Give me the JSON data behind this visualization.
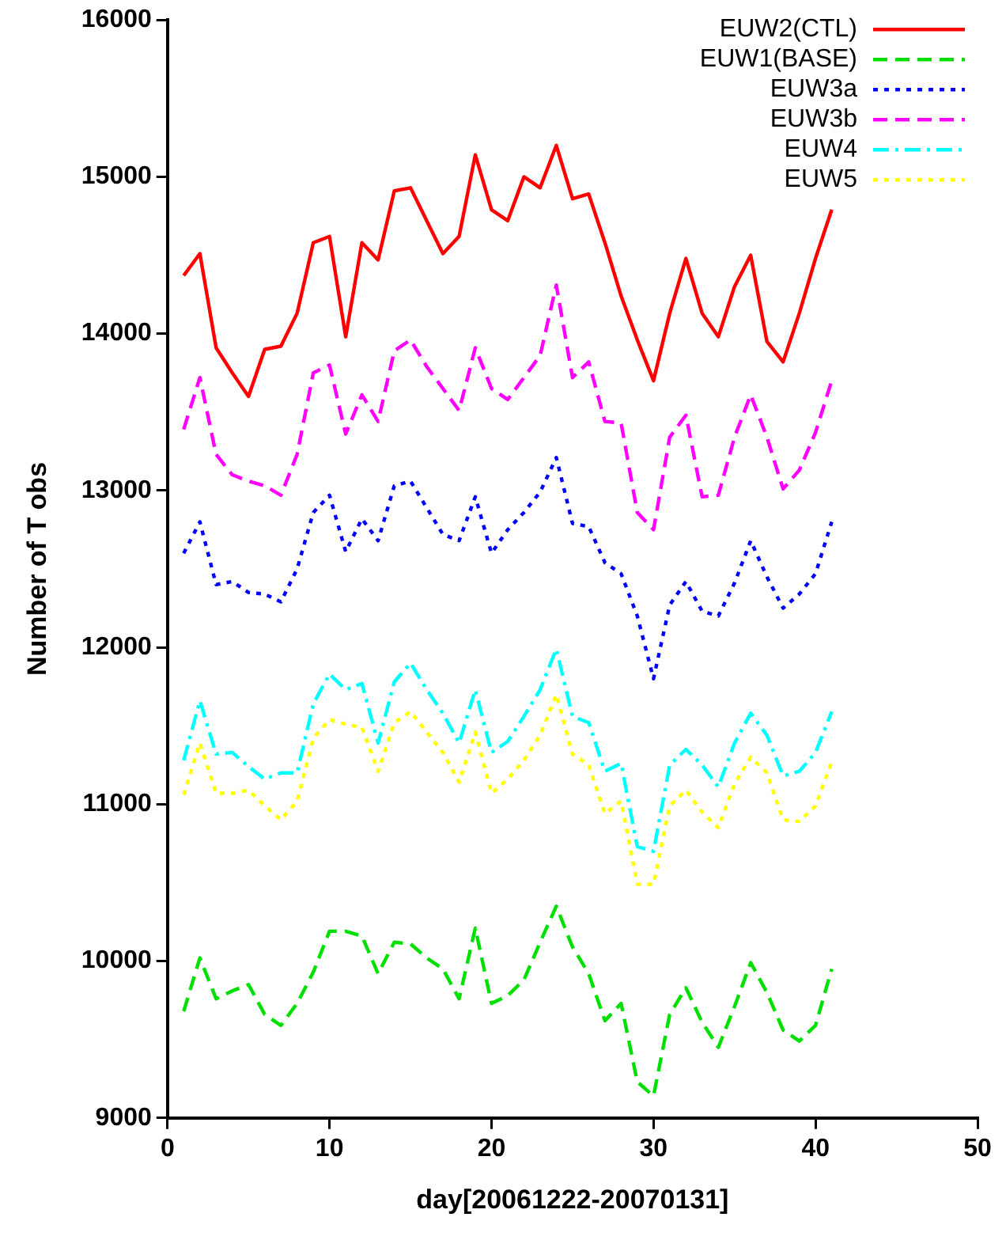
{
  "chart_data": {
    "type": "line",
    "xlabel": "day[20061222-20070131]",
    "ylabel": "Number of T obs",
    "x": [
      1,
      2,
      3,
      4,
      5,
      6,
      7,
      8,
      9,
      10,
      11,
      12,
      13,
      14,
      15,
      16,
      17,
      18,
      19,
      20,
      21,
      22,
      23,
      24,
      25,
      26,
      27,
      28,
      29,
      30,
      31,
      32,
      33,
      34,
      35,
      36,
      37,
      38,
      39,
      40,
      41
    ],
    "xlim": [
      0,
      50
    ],
    "xticks": [
      0,
      10,
      20,
      30,
      40,
      50
    ],
    "ylim": [
      9000,
      16000
    ],
    "yticks": [
      9000,
      10000,
      11000,
      12000,
      13000,
      14000,
      15000,
      16000
    ],
    "grid": false,
    "legend": "top right",
    "marker": "none",
    "series": [
      {
        "name": "EUW2(CTL)",
        "color": "#ff0000",
        "line_style": "solid",
        "values": [
          14370,
          14510,
          13910,
          13750,
          13600,
          13900,
          13920,
          14130,
          14580,
          14620,
          13980,
          14580,
          14470,
          14910,
          14930,
          14720,
          14510,
          14620,
          15140,
          14790,
          14720,
          15000,
          14930,
          15200,
          14860,
          14890,
          14580,
          14240,
          13960,
          13700,
          14130,
          14480,
          14130,
          13980,
          14300,
          14500,
          13950,
          13820,
          14130,
          14480,
          14790
        ]
      },
      {
        "name": "EUW1(BASE)",
        "color": "#00e000",
        "line_style": "dashed",
        "values": [
          9680,
          10020,
          9760,
          9810,
          9850,
          9660,
          9590,
          9730,
          9930,
          10190,
          10190,
          10160,
          9920,
          10120,
          10110,
          10020,
          9950,
          9760,
          10210,
          9730,
          9780,
          9880,
          10120,
          10350,
          10090,
          9920,
          9620,
          9730,
          9230,
          9140,
          9660,
          9830,
          9610,
          9450,
          9710,
          9990,
          9800,
          9560,
          9490,
          9590,
          9950
        ]
      },
      {
        "name": "EUW3a",
        "color": "#0000ff",
        "line_style": "dotted",
        "values": [
          12600,
          12800,
          12400,
          12420,
          12350,
          12340,
          12290,
          12500,
          12860,
          12970,
          12610,
          12820,
          12680,
          13030,
          13060,
          12890,
          12720,
          12680,
          12960,
          12600,
          12750,
          12860,
          12990,
          13210,
          12790,
          12770,
          12540,
          12470,
          12200,
          11800,
          12270,
          12420,
          12230,
          12200,
          12410,
          12680,
          12450,
          12250,
          12340,
          12470,
          12800
        ]
      },
      {
        "name": "EUW3b",
        "color": "#ff00ff",
        "line_style": "dashed",
        "values": [
          13390,
          13720,
          13230,
          13100,
          13060,
          13030,
          12970,
          13230,
          13750,
          13800,
          13360,
          13610,
          13440,
          13890,
          13960,
          13790,
          13650,
          13510,
          13910,
          13650,
          13580,
          13720,
          13860,
          14310,
          13720,
          13820,
          13440,
          13430,
          12860,
          12750,
          13340,
          13480,
          12960,
          12970,
          13340,
          13610,
          13340,
          13010,
          13130,
          13370,
          13700
        ]
      },
      {
        "name": "EUW4",
        "color": "#00ffff",
        "line_style": "dashdot",
        "values": [
          11280,
          11660,
          11320,
          11330,
          11240,
          11160,
          11200,
          11200,
          11640,
          11830,
          11730,
          11770,
          11390,
          11780,
          11900,
          11730,
          11580,
          11390,
          11730,
          11330,
          11400,
          11560,
          11730,
          11990,
          11560,
          11520,
          11210,
          11260,
          10730,
          10700,
          11250,
          11350,
          11250,
          11110,
          11390,
          11580,
          11440,
          11180,
          11210,
          11330,
          11590
        ]
      },
      {
        "name": "EUW5",
        "color": "#ffff00",
        "line_style": "dotted",
        "values": [
          11060,
          11390,
          11070,
          11070,
          11090,
          10990,
          10900,
          11020,
          11420,
          11540,
          11510,
          11490,
          11210,
          11520,
          11590,
          11460,
          11330,
          11140,
          11460,
          11070,
          11160,
          11280,
          11440,
          11700,
          11320,
          11250,
          10940,
          11020,
          10490,
          10490,
          10990,
          11090,
          10950,
          10850,
          11130,
          11300,
          11200,
          10900,
          10890,
          10990,
          11270
        ]
      }
    ]
  }
}
